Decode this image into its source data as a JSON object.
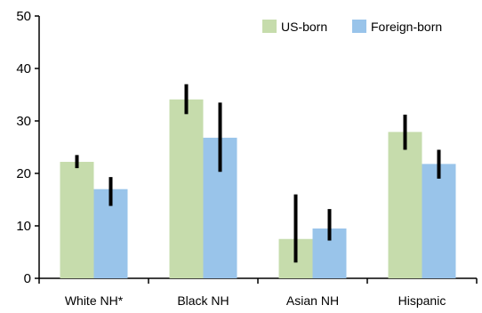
{
  "chart_data": {
    "type": "bar",
    "title": "",
    "xlabel": "",
    "ylabel": "",
    "categories": [
      "White NH*",
      "Black NH",
      "Asian NH",
      "Hispanic"
    ],
    "ylim": [
      0,
      50
    ],
    "yticks": [
      0,
      10,
      20,
      30,
      40,
      50
    ],
    "grid": false,
    "legend_position": "top-right",
    "series": [
      {
        "name": "US-born",
        "color": "#c6dcac",
        "values": [
          22.2,
          34.1,
          7.5,
          27.9
        ],
        "error_low": [
          21.0,
          31.3,
          3.0,
          24.5
        ],
        "error_high": [
          23.5,
          37.0,
          16.0,
          31.2
        ]
      },
      {
        "name": "Foreign-born",
        "color": "#99c4ea",
        "values": [
          17.0,
          26.8,
          9.5,
          21.8
        ],
        "error_low": [
          13.8,
          20.3,
          7.2,
          19.0
        ],
        "error_high": [
          19.3,
          33.5,
          13.2,
          24.5
        ]
      }
    ],
    "error_bar_color": "#000000"
  }
}
